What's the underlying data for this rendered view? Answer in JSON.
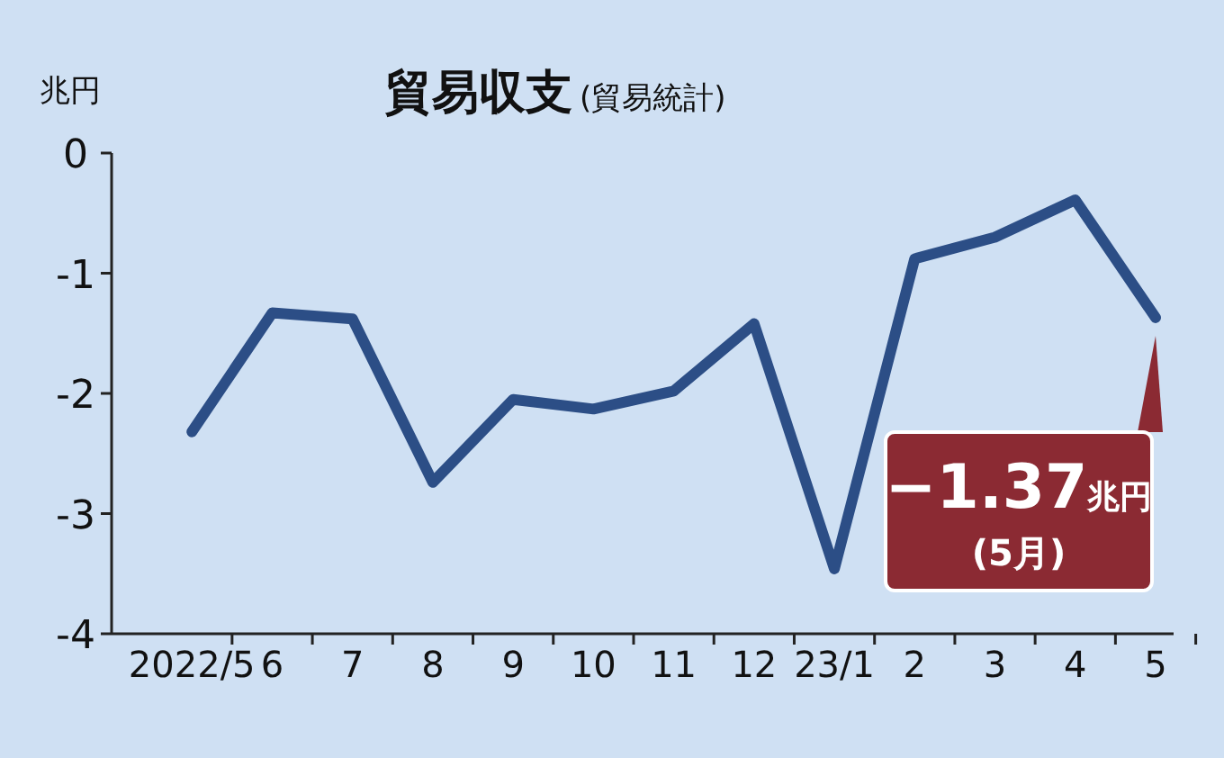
{
  "chart_data": {
    "type": "line",
    "title": "貿易収支",
    "subtitle": "(貿易統計)",
    "ylabel": "兆円",
    "categories": [
      "2022/5",
      "6",
      "7",
      "8",
      "9",
      "10",
      "11",
      "12",
      "23/1",
      "2",
      "3",
      "4",
      "5"
    ],
    "series": [
      {
        "color": "#2c4e86",
        "values": [
          -2.32,
          -1.33,
          -1.38,
          -2.74,
          -2.05,
          -2.13,
          -1.98,
          -1.42,
          -3.46,
          -0.88,
          -0.7,
          -0.39,
          -1.37
        ]
      }
    ],
    "ylim": [
      -4,
      0
    ],
    "yticks": [
      0,
      -1,
      -2,
      -3,
      -4
    ],
    "grid": false,
    "marker": "none",
    "line_style": "solid",
    "annotations": [
      {
        "text": "−1.37兆円",
        "x": "5",
        "y": -1.37
      },
      "(5月)"
    ]
  }
}
